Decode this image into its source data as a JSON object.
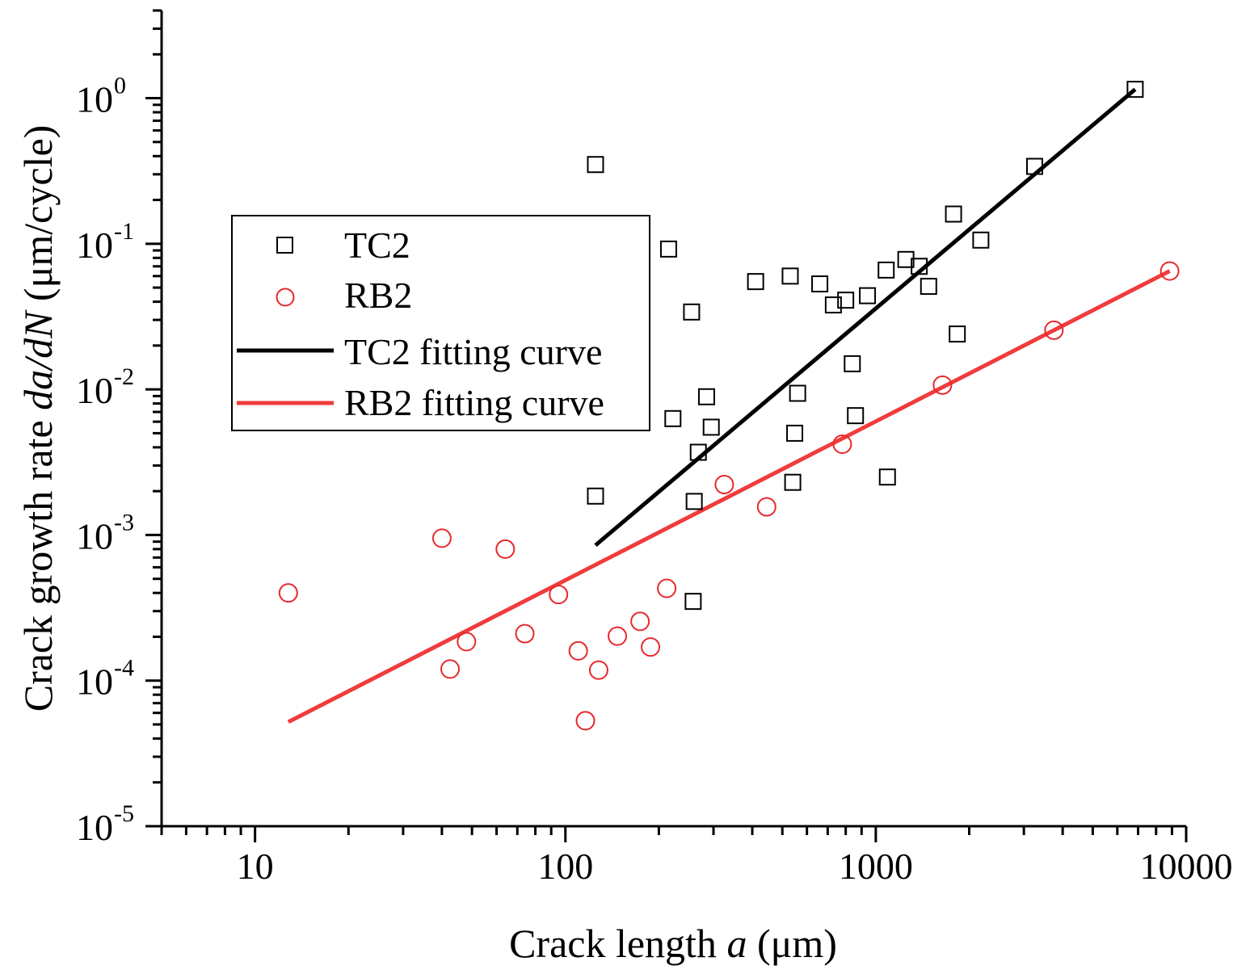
{
  "chart_data": {
    "type": "scatter",
    "xscale": "log",
    "yscale": "log",
    "xlim": [
      5,
      10000
    ],
    "ylim": [
      1e-05,
      4
    ],
    "xticks": [
      10,
      100,
      1000,
      10000
    ],
    "xtick_labels": [
      "10",
      "100",
      "1000",
      "10000"
    ],
    "yticks": [
      1e-05,
      0.0001,
      0.001,
      0.01,
      0.1,
      1
    ],
    "ytick_labels": [
      {
        "base": "10",
        "exp": "-5"
      },
      {
        "base": "10",
        "exp": "-4"
      },
      {
        "base": "10",
        "exp": "-3"
      },
      {
        "base": "10",
        "exp": "-2"
      },
      {
        "base": "10",
        "exp": "-1"
      },
      {
        "base": "10",
        "exp": "0"
      }
    ],
    "xlabel": {
      "pre": "Crack length ",
      "italic": "a",
      "post": " (μm)"
    },
    "ylabel": {
      "pre": "Crack growth rate ",
      "italic": "da/dN",
      "post": " (μm/cycle)"
    },
    "legend": {
      "position": "upper-left",
      "entries": [
        {
          "label": "TC2",
          "type": "square",
          "color": "#000000"
        },
        {
          "label": "RB2",
          "type": "circle",
          "color": "#e8282b"
        },
        {
          "label": "TC2 fitting curve",
          "type": "line",
          "color": "#000000"
        },
        {
          "label": "RB2 fitting curve",
          "type": "line",
          "color": "#f03c3c"
        }
      ]
    },
    "series": [
      {
        "name": "TC2",
        "marker": "square",
        "color": "#000000",
        "points": [
          [
            125,
            0.35
          ],
          [
            125,
            0.00185
          ],
          [
            215,
            0.092
          ],
          [
            222,
            0.0063
          ],
          [
            255,
            0.034
          ],
          [
            258,
            0.00035
          ],
          [
            260,
            0.0017
          ],
          [
            268,
            0.0037
          ],
          [
            285,
            0.0089
          ],
          [
            295,
            0.0055
          ],
          [
            410,
            0.055
          ],
          [
            530,
            0.06
          ],
          [
            540,
            0.0023
          ],
          [
            548,
            0.005
          ],
          [
            560,
            0.0094
          ],
          [
            660,
            0.053
          ],
          [
            730,
            0.038
          ],
          [
            800,
            0.041
          ],
          [
            840,
            0.015
          ],
          [
            860,
            0.0066
          ],
          [
            940,
            0.044
          ],
          [
            1080,
            0.066
          ],
          [
            1090,
            0.0025
          ],
          [
            1250,
            0.078
          ],
          [
            1380,
            0.07
          ],
          [
            1480,
            0.051
          ],
          [
            1780,
            0.16
          ],
          [
            1830,
            0.024
          ],
          [
            2180,
            0.106
          ],
          [
            3250,
            0.34
          ],
          [
            6850,
            1.15
          ]
        ]
      },
      {
        "name": "RB2",
        "marker": "circle",
        "color": "#e8282b",
        "points": [
          [
            12.8,
            0.0004
          ],
          [
            40,
            0.00095
          ],
          [
            42.5,
            0.00012
          ],
          [
            48,
            0.000185
          ],
          [
            64,
            0.0008
          ],
          [
            74,
            0.00021
          ],
          [
            95,
            0.00039
          ],
          [
            110,
            0.00016
          ],
          [
            116,
            5.3e-05
          ],
          [
            128,
            0.000118
          ],
          [
            147,
            0.000202
          ],
          [
            174,
            0.000255
          ],
          [
            188,
            0.00017
          ],
          [
            212,
            0.00043
          ],
          [
            325,
            0.00222
          ],
          [
            445,
            0.00156
          ],
          [
            780,
            0.0042
          ],
          [
            1640,
            0.0107
          ],
          [
            3750,
            0.0255
          ],
          [
            8850,
            0.065
          ]
        ]
      },
      {
        "name": "TC2 fitting curve",
        "type": "line",
        "color": "#000000",
        "points": [
          [
            125,
            0.00085
          ],
          [
            6850,
            1.15
          ]
        ]
      },
      {
        "name": "RB2 fitting curve",
        "type": "line",
        "color": "#f03c3c",
        "points": [
          [
            12.8,
            5.2e-05
          ],
          [
            8850,
            0.065
          ]
        ]
      }
    ]
  }
}
